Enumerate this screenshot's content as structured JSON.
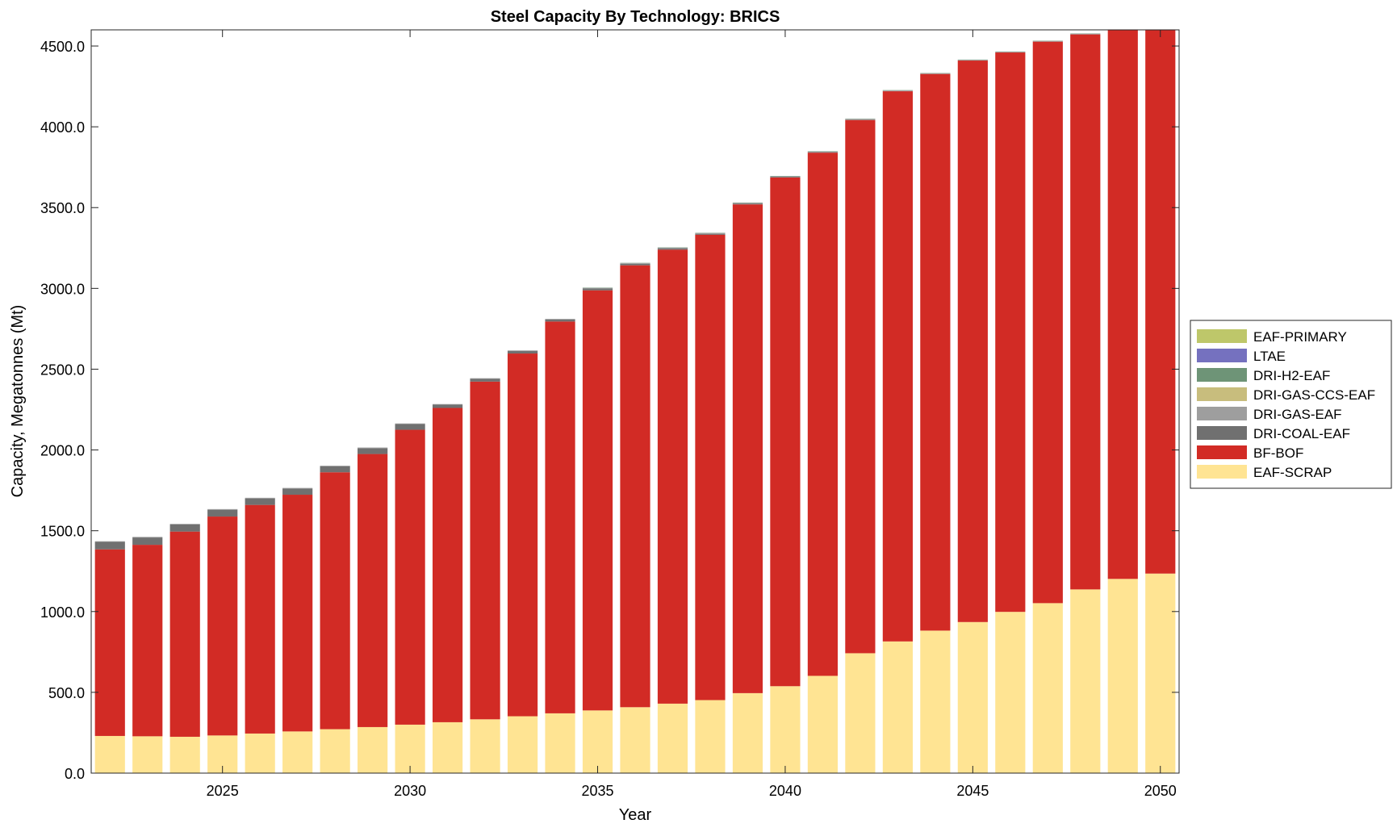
{
  "chart_data": {
    "type": "bar",
    "stacked": true,
    "title": "Steel Capacity By Technology: BRICS",
    "xlabel": "Year",
    "ylabel": "Capacity, Megatonnes (Mt)",
    "ylim": [
      0,
      4600
    ],
    "yticks": [
      0,
      500,
      1000,
      1500,
      2000,
      2500,
      3000,
      3500,
      4000,
      4500
    ],
    "ytick_labels": [
      "0.0",
      "500.0",
      "1000.0",
      "1500.0",
      "2000.0",
      "2500.0",
      "3000.0",
      "3500.0",
      "4000.0",
      "4500.0"
    ],
    "xticks": [
      2025,
      2030,
      2035,
      2040,
      2045,
      2050
    ],
    "xtick_labels": [
      "2025",
      "2030",
      "2035",
      "2040",
      "2045",
      "2050"
    ],
    "grid": false,
    "legend_position": "right",
    "categories": [
      2022,
      2023,
      2024,
      2025,
      2026,
      2027,
      2028,
      2029,
      2030,
      2031,
      2032,
      2033,
      2034,
      2035,
      2036,
      2037,
      2038,
      2039,
      2040,
      2041,
      2042,
      2043,
      2044,
      2045,
      2046,
      2047,
      2048,
      2049,
      2050
    ],
    "series": [
      {
        "name": "EAF-SCRAP",
        "color": "#FFE493",
        "values": [
          230,
          228,
          225,
          233,
          245,
          258,
          272,
          285,
          300,
          315,
          333,
          352,
          370,
          388,
          408,
          430,
          452,
          495,
          538,
          602,
          742,
          815,
          882,
          935,
          998,
          1052,
          1137,
          1202,
          1235
        ]
      },
      {
        "name": "BF-BOF",
        "color": "#D22B25",
        "values": [
          1155,
          1185,
          1270,
          1355,
          1415,
          1465,
          1590,
          1690,
          1825,
          1945,
          2090,
          2245,
          2425,
          2600,
          2735,
          2810,
          2880,
          3025,
          3148,
          3238,
          3300,
          3405,
          3445,
          3475,
          3462,
          3475,
          3435,
          3420,
          3365
        ]
      },
      {
        "name": "DRI-COAL-EAF",
        "color": "#707070",
        "values": [
          46,
          45,
          44,
          42,
          40,
          38,
          37,
          36,
          35,
          20,
          17,
          15,
          12,
          11,
          9,
          8,
          6,
          5,
          4,
          3,
          2,
          1,
          0,
          0,
          0,
          0,
          0,
          0,
          0
        ]
      },
      {
        "name": "DRI-GAS-EAF",
        "color": "#9E9E9E",
        "values": [
          4,
          4,
          4,
          4,
          4,
          4,
          4,
          4,
          4,
          4,
          4,
          4,
          4,
          4,
          4,
          4,
          4,
          4,
          4,
          4,
          4,
          4,
          4,
          4,
          4,
          4,
          4,
          4,
          4
        ]
      },
      {
        "name": "DRI-GAS-CCS-EAF",
        "color": "#C8BD7D",
        "values": [
          0,
          0,
          0,
          0,
          0,
          0,
          0,
          0,
          0,
          0,
          0,
          0,
          0,
          0,
          0,
          0,
          0,
          0,
          0,
          0,
          0,
          0,
          0,
          0,
          0,
          0,
          0,
          0,
          0
        ]
      },
      {
        "name": "DRI-H2-EAF",
        "color": "#6E9477",
        "values": [
          0,
          0,
          0,
          0,
          0,
          0,
          0,
          0,
          0,
          0,
          0,
          0,
          0,
          2,
          2,
          2,
          2,
          2,
          2,
          2,
          2,
          2,
          2,
          2,
          2,
          2,
          2,
          2,
          2
        ]
      },
      {
        "name": "LTAE",
        "color": "#7571BF",
        "values": [
          0,
          0,
          0,
          0,
          0,
          0,
          0,
          0,
          0,
          0,
          0,
          0,
          0,
          0,
          0,
          0,
          0,
          0,
          0,
          0,
          0,
          0,
          0,
          0,
          0,
          0,
          0,
          0,
          0
        ]
      },
      {
        "name": "EAF-PRIMARY",
        "color": "#BEC76A",
        "values": [
          0,
          0,
          0,
          0,
          0,
          0,
          0,
          0,
          0,
          0,
          0,
          0,
          0,
          0,
          0,
          0,
          0,
          0,
          0,
          0,
          0,
          0,
          0,
          0,
          0,
          0,
          0,
          0,
          0
        ]
      }
    ],
    "legend_order": [
      "EAF-PRIMARY",
      "LTAE",
      "DRI-H2-EAF",
      "DRI-GAS-CCS-EAF",
      "DRI-GAS-EAF",
      "DRI-COAL-EAF",
      "BF-BOF",
      "EAF-SCRAP"
    ]
  }
}
